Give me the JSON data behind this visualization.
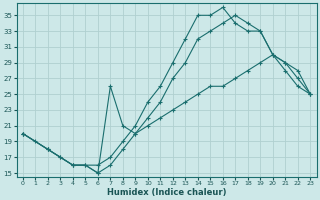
{
  "xlabel": "Humidex (Indice chaleur)",
  "bg_color": "#cde8e8",
  "grid_color": "#b0d0d0",
  "line_color": "#1a6e6e",
  "xlim": [
    -0.5,
    23.5
  ],
  "ylim": [
    14.5,
    36.5
  ],
  "xticks": [
    0,
    1,
    2,
    3,
    4,
    5,
    6,
    7,
    8,
    9,
    10,
    11,
    12,
    13,
    14,
    15,
    16,
    17,
    18,
    19,
    20,
    21,
    22,
    23
  ],
  "yticks": [
    15,
    17,
    19,
    21,
    23,
    25,
    27,
    29,
    31,
    33,
    35
  ],
  "line1_x": [
    0,
    1,
    2,
    3,
    4,
    5,
    6,
    7,
    8,
    9,
    10,
    11,
    12,
    13,
    14,
    15,
    16,
    17,
    18,
    19,
    20,
    21,
    22,
    23
  ],
  "line1_y": [
    20,
    19,
    18,
    17,
    16,
    16,
    15,
    16,
    18,
    20,
    22,
    24,
    27,
    29,
    32,
    33,
    34,
    35,
    34,
    33,
    30,
    28,
    26,
    25
  ],
  "line2_x": [
    0,
    2,
    4,
    6,
    7,
    8,
    9,
    10,
    11,
    12,
    13,
    14,
    15,
    16,
    17,
    18,
    19,
    20,
    21,
    22,
    23
  ],
  "line2_y": [
    20,
    18,
    16,
    16,
    17,
    19,
    21,
    24,
    26,
    29,
    32,
    35,
    35,
    36,
    34,
    33,
    33,
    30,
    29,
    28,
    25
  ],
  "line3_x": [
    0,
    2,
    3,
    4,
    5,
    6,
    7,
    8,
    9,
    10,
    11,
    12,
    13,
    14,
    15,
    16,
    17,
    18,
    19,
    20,
    21,
    22,
    23
  ],
  "line3_y": [
    20,
    18,
    17,
    16,
    16,
    15,
    26,
    21,
    20,
    21,
    22,
    23,
    24,
    25,
    26,
    26,
    27,
    28,
    29,
    30,
    29,
    27,
    25
  ]
}
